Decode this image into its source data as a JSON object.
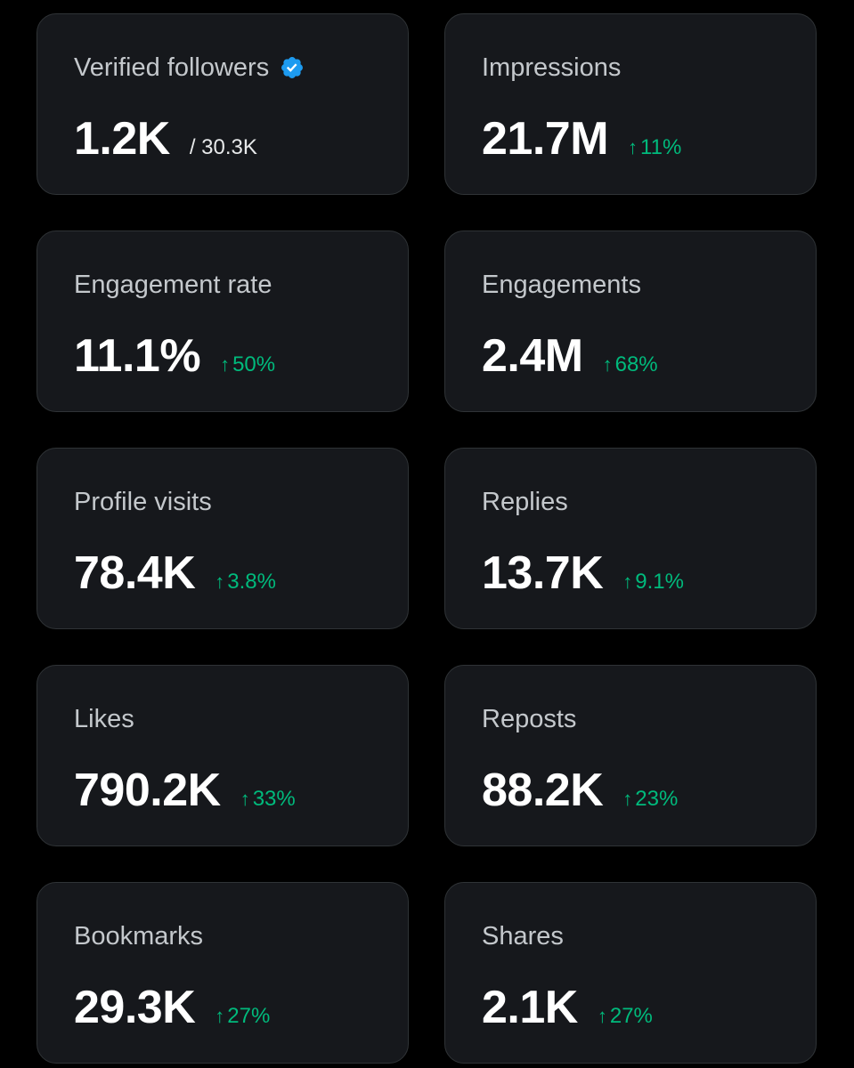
{
  "colors": {
    "background": "#000000",
    "card_background": "#16181c",
    "card_border": "#2f3336",
    "label": "#c4c8cc",
    "value": "#ffffff",
    "positive_change": "#00ba7c",
    "verified_badge": "#1d9bf0"
  },
  "cards": [
    {
      "label": "Verified followers",
      "value": "1.2K",
      "sub": "/ 30.3K",
      "icon": "verified-badge-icon"
    },
    {
      "label": "Impressions",
      "value": "21.7M",
      "change": "11%",
      "change_icon": "arrow-up-icon"
    },
    {
      "label": "Engagement rate",
      "value": "11.1%",
      "change": "50%",
      "change_icon": "arrow-up-icon"
    },
    {
      "label": "Engagements",
      "value": "2.4M",
      "change": "68%",
      "change_icon": "arrow-up-icon"
    },
    {
      "label": "Profile visits",
      "value": "78.4K",
      "change": "3.8%",
      "change_icon": "arrow-up-icon"
    },
    {
      "label": "Replies",
      "value": "13.7K",
      "change": "9.1%",
      "change_icon": "arrow-up-icon"
    },
    {
      "label": "Likes",
      "value": "790.2K",
      "change": "33%",
      "change_icon": "arrow-up-icon"
    },
    {
      "label": "Reposts",
      "value": "88.2K",
      "change": "23%",
      "change_icon": "arrow-up-icon"
    },
    {
      "label": "Bookmarks",
      "value": "29.3K",
      "change": "27%",
      "change_icon": "arrow-up-icon"
    },
    {
      "label": "Shares",
      "value": "2.1K",
      "change": "27%",
      "change_icon": "arrow-up-icon"
    }
  ]
}
